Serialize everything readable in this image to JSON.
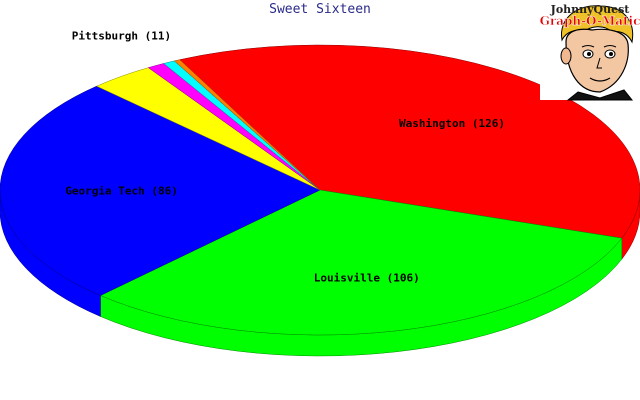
{
  "chart_data": {
    "type": "pie",
    "title": "Sweet Sixteen",
    "slices": [
      {
        "label": "Washington (126)",
        "value": 126,
        "color": "#ff0000"
      },
      {
        "label": "Louisville (106)",
        "value": 106,
        "color": "#00ff00"
      },
      {
        "label": "Georgia Tech (86)",
        "value": 86,
        "color": "#0000ff"
      },
      {
        "label": "Pittsburgh (11)",
        "value": 11,
        "color": "#ffff00"
      },
      {
        "label": "",
        "value": 3,
        "color": "#ff00ff"
      },
      {
        "label": "",
        "value": 2,
        "color": "#00ffff"
      },
      {
        "label": "",
        "value": 1,
        "color": "#ff8000"
      }
    ]
  },
  "logo": {
    "line1": "JohnnyQuest",
    "line2": "Graph-O-Matic"
  }
}
